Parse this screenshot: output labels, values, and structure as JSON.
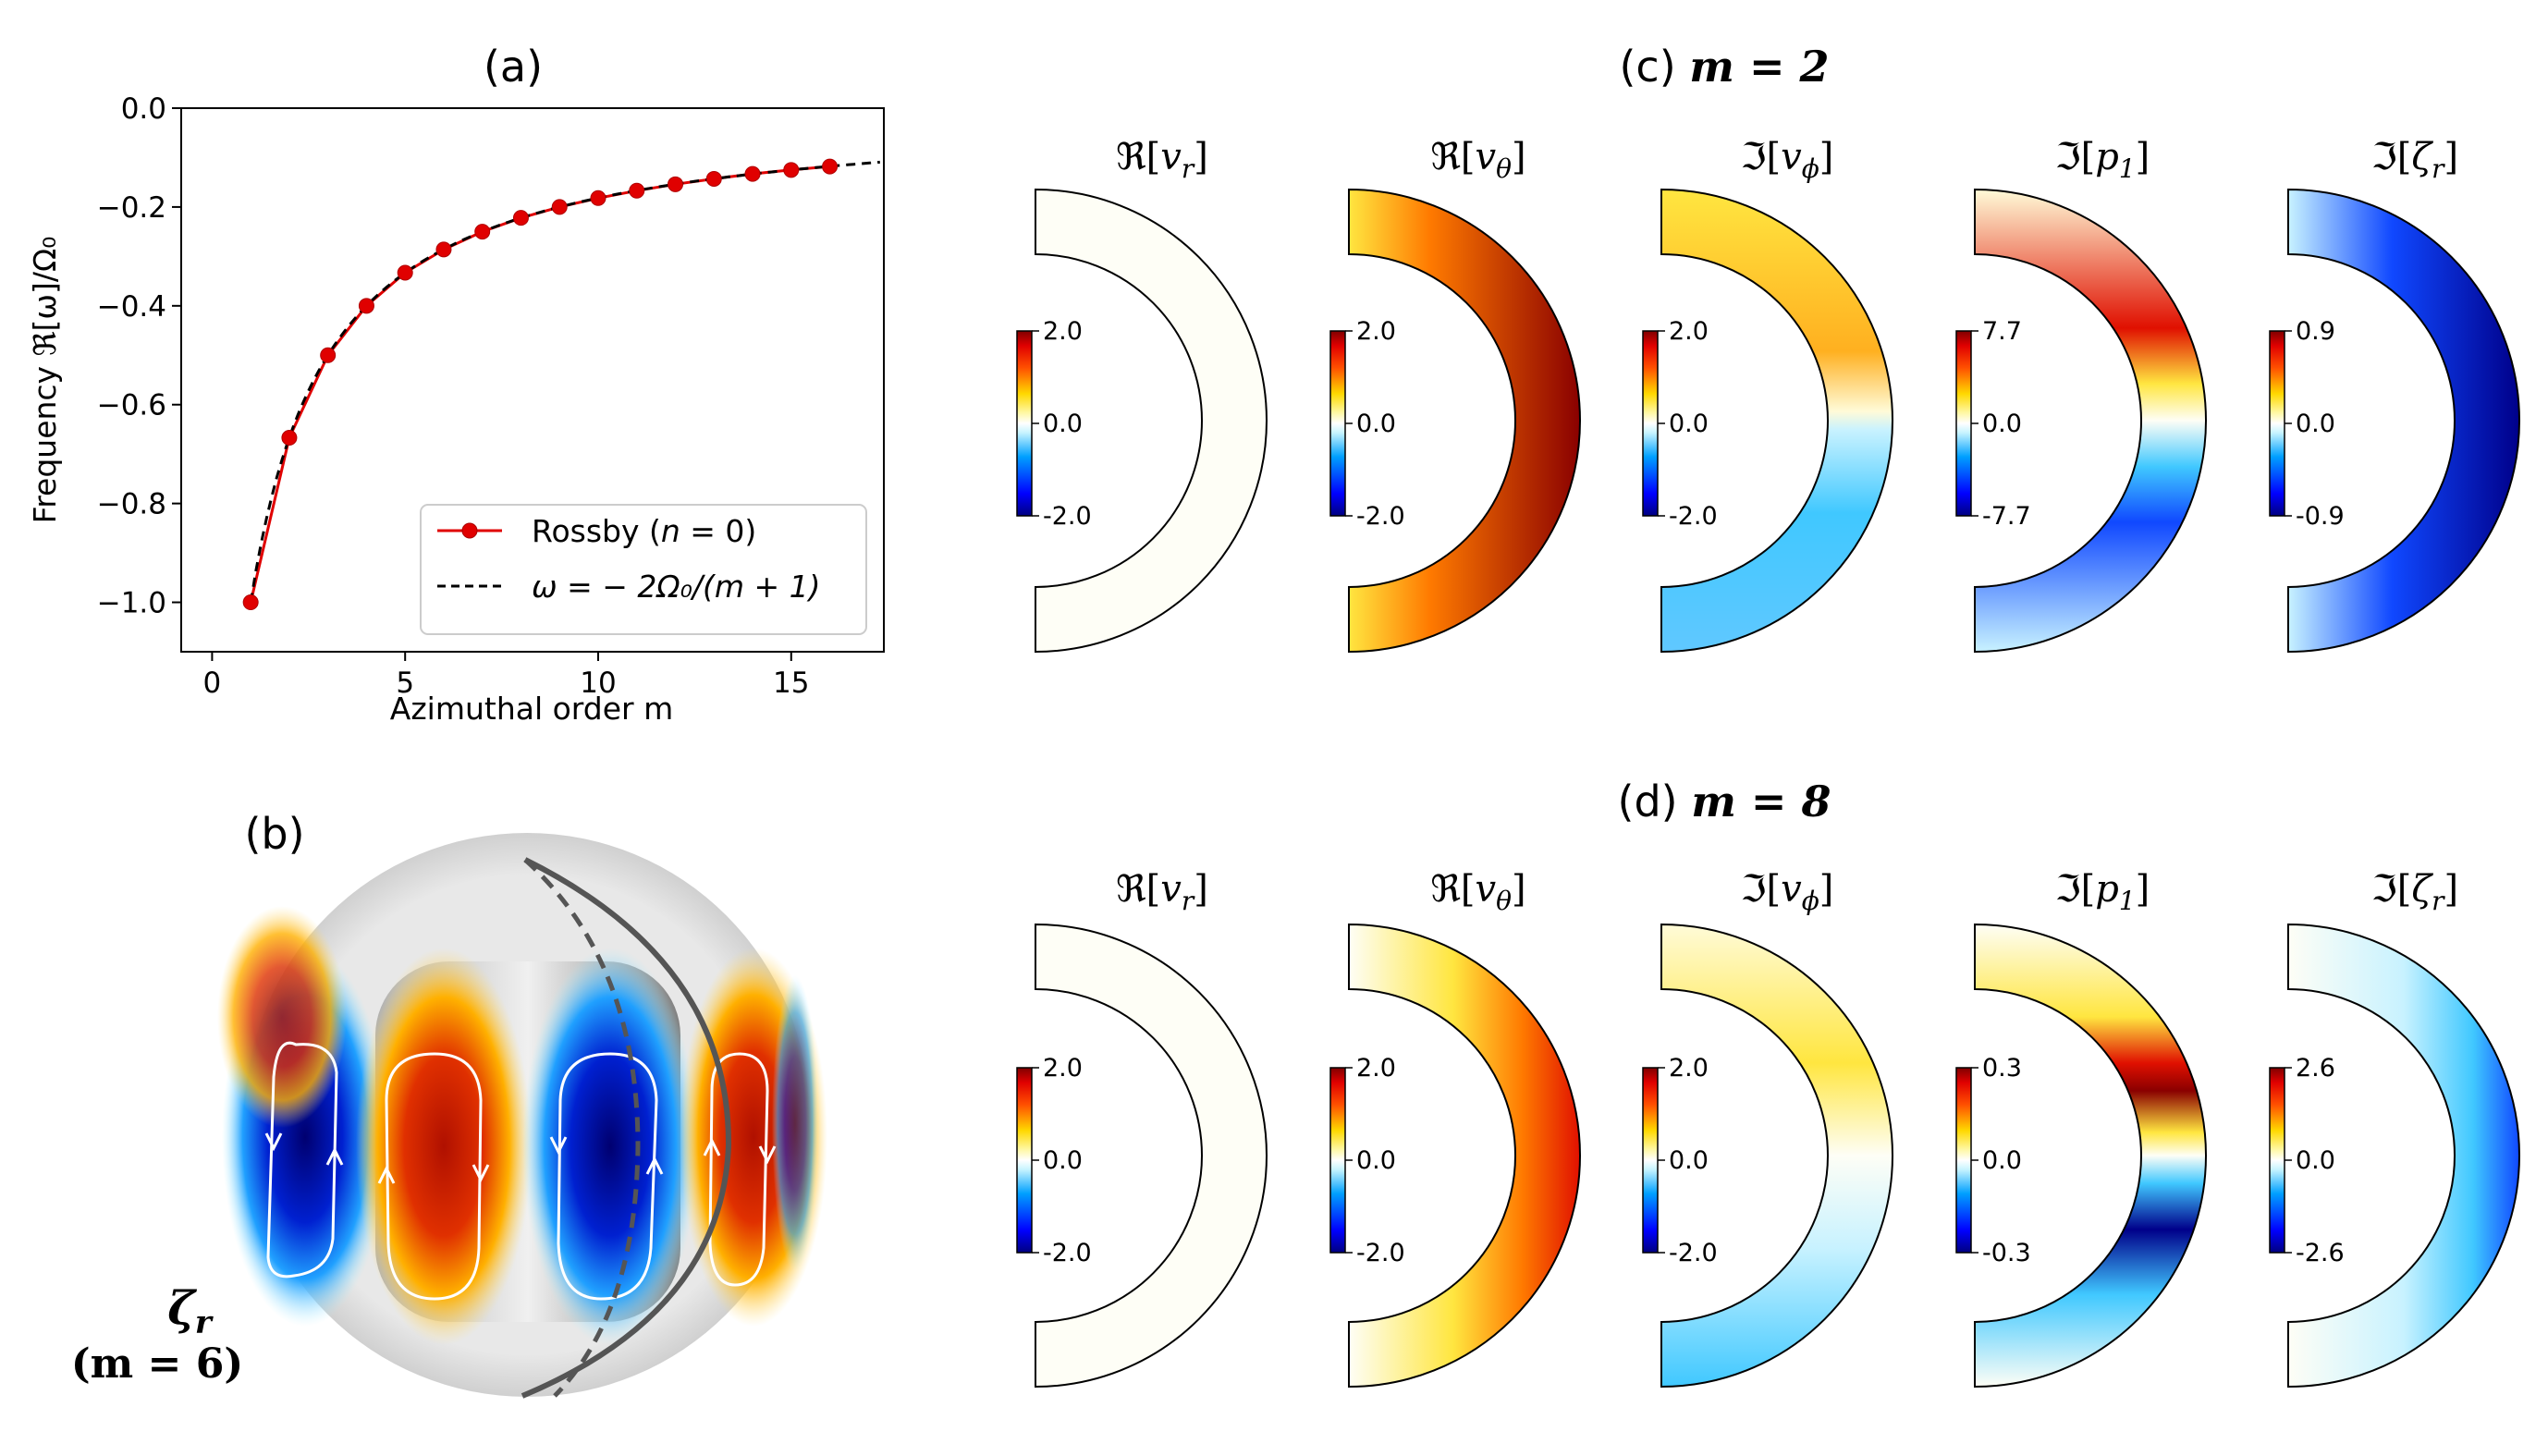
{
  "chart_data": [
    {
      "panel": "(a)",
      "type": "line",
      "title": "(a)",
      "xlabel": "Azimuthal order m",
      "ylabel": "Frequency ℜ[ω]/Ω₀",
      "xlim": [
        -0.8,
        17.4
      ],
      "ylim": [
        -1.1,
        0.0
      ],
      "xticks": [
        0,
        5,
        10,
        15
      ],
      "yticks": [
        0.0,
        -0.2,
        -0.4,
        -0.6,
        -0.8,
        -1.0
      ],
      "xtick_labels": [
        "0",
        "5",
        "10",
        "15"
      ],
      "ytick_labels": [
        "0.0",
        "−0.2",
        "−0.4",
        "−0.6",
        "−0.8",
        "−1.0"
      ],
      "series": [
        {
          "name": "Rossby (n = 0)",
          "style": "red line with markers",
          "x": [
            1,
            2,
            3,
            4,
            5,
            6,
            7,
            8,
            9,
            10,
            11,
            12,
            13,
            14,
            15,
            16
          ],
          "values": [
            -1.0,
            -0.667,
            -0.5,
            -0.4,
            -0.333,
            -0.286,
            -0.25,
            -0.222,
            -0.2,
            -0.182,
            -0.167,
            -0.154,
            -0.143,
            -0.133,
            -0.125,
            -0.118
          ]
        },
        {
          "name": "ω = −2Ω₀/(m + 1)",
          "style": "black dashed",
          "x_range": [
            1,
            17.3
          ]
        }
      ],
      "legend_position": "lower-right",
      "legend": [
        {
          "prefix": "Rossby (",
          "italic": "n",
          "suffix": " = 0)"
        },
        {
          "text": "ω = − 2Ω₀/(m + 1)"
        }
      ]
    },
    {
      "panel": "(c)",
      "type": "heatmap",
      "title_prefix": "(c) ",
      "title_math": "m = 2",
      "fields": [
        {
          "label_op": "ℜ",
          "label_var": "v",
          "label_sub": "r",
          "cb_max": "2.0",
          "cb_mid": "0.0",
          "cb_min": "-2.0"
        },
        {
          "label_op": "ℜ",
          "label_var": "v",
          "label_sub": "θ",
          "cb_max": "2.0",
          "cb_mid": "0.0",
          "cb_min": "-2.0"
        },
        {
          "label_op": "ℑ",
          "label_var": "v",
          "label_sub": "ϕ",
          "cb_max": "2.0",
          "cb_mid": "0.0",
          "cb_min": "-2.0"
        },
        {
          "label_op": "ℑ",
          "label_var": "p",
          "label_sub": "1",
          "cb_max": "7.7",
          "cb_mid": "0.0",
          "cb_min": "-7.7"
        },
        {
          "label_op": "ℑ",
          "label_var": "ζ",
          "label_sub": "r",
          "cb_max": "0.9",
          "cb_mid": "0.0",
          "cb_min": "-0.9"
        }
      ]
    },
    {
      "panel": "(d)",
      "type": "heatmap",
      "title_prefix": "(d) ",
      "title_math": "m = 8",
      "fields": [
        {
          "label_op": "ℜ",
          "label_var": "v",
          "label_sub": "r",
          "cb_max": "2.0",
          "cb_mid": "0.0",
          "cb_min": "-2.0"
        },
        {
          "label_op": "ℜ",
          "label_var": "v",
          "label_sub": "θ",
          "cb_max": "2.0",
          "cb_mid": "0.0",
          "cb_min": "-2.0"
        },
        {
          "label_op": "ℑ",
          "label_var": "v",
          "label_sub": "ϕ",
          "cb_max": "2.0",
          "cb_mid": "0.0",
          "cb_min": "-2.0"
        },
        {
          "label_op": "ℑ",
          "label_var": "p",
          "label_sub": "1",
          "cb_max": "0.3",
          "cb_mid": "0.0",
          "cb_min": "-0.3"
        },
        {
          "label_op": "ℑ",
          "label_var": "ζ",
          "label_sub": "r",
          "cb_max": "2.6",
          "cb_mid": "0.0",
          "cb_min": "-2.6"
        }
      ]
    },
    {
      "panel": "(b)",
      "type": "other",
      "title": "(b)",
      "label_var": "ζ",
      "label_sub": "r",
      "label_math": "(m = 6)"
    }
  ]
}
